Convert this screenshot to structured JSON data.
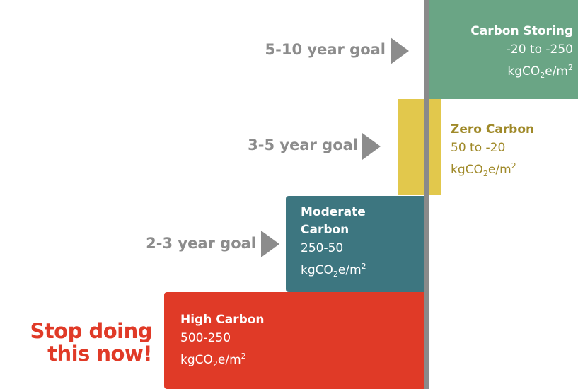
{
  "levels": [
    {
      "title": "Carbon Storing",
      "range": "-20 to -250",
      "unit": {
        "base": "kgCO",
        "sub": "2",
        "mid": "e/m",
        "sup": "2"
      }
    },
    {
      "title": "Zero Carbon",
      "range": "50 to -20",
      "unit": {
        "base": "kgCO",
        "sub": "2",
        "mid": "e/m",
        "sup": "2"
      }
    },
    {
      "title": "Moderate Carbon",
      "range": "250-50",
      "unit": {
        "base": "kgCO",
        "sub": "2",
        "mid": "e/m",
        "sup": "2"
      }
    },
    {
      "title": "High Carbon",
      "range": "500-250",
      "unit": {
        "base": "kgCO",
        "sub": "2",
        "mid": "e/m",
        "sup": "2"
      }
    }
  ],
  "goals": [
    "5-10 year goal",
    "3-5 year goal",
    "2-3 year goal"
  ],
  "warning": [
    "Stop doing",
    "this now!"
  ]
}
